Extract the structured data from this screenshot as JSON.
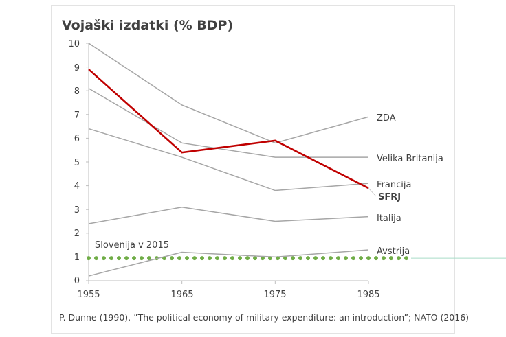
{
  "chart_data": {
    "type": "line",
    "title": "Vojaški izdatki (% BDP)",
    "xlabel": "",
    "ylabel": "",
    "x": [
      1955,
      1965,
      1975,
      1985
    ],
    "x_tick_labels": [
      "1955",
      "1965",
      "1975",
      "1985"
    ],
    "y_tick_labels": [
      "0",
      "1",
      "2",
      "3",
      "4",
      "5",
      "6",
      "7",
      "8",
      "9",
      "10"
    ],
    "ylim": [
      0,
      10
    ],
    "grid": false,
    "series": [
      {
        "name": "ZDA",
        "values": [
          10.0,
          7.4,
          5.8,
          6.9
        ],
        "color": "#a6a6a6",
        "highlight": false
      },
      {
        "name": "Velika Britanija",
        "values": [
          8.1,
          5.8,
          5.2,
          5.2
        ],
        "color": "#a6a6a6",
        "highlight": false
      },
      {
        "name": "Francija",
        "values": [
          6.4,
          5.2,
          3.8,
          4.1
        ],
        "color": "#a6a6a6",
        "highlight": false
      },
      {
        "name": "Italija",
        "values": [
          2.4,
          3.1,
          2.5,
          2.7
        ],
        "color": "#a6a6a6",
        "highlight": false
      },
      {
        "name": "Avstrija",
        "values": [
          0.2,
          1.2,
          1.0,
          1.3
        ],
        "color": "#a6a6a6",
        "highlight": false
      },
      {
        "name": "SFRJ",
        "values": [
          8.9,
          5.4,
          5.9,
          3.9
        ],
        "color": "#c00000",
        "highlight": true
      }
    ],
    "reference_line": {
      "label": "Slovenija v 2015",
      "value": 0.95,
      "color": "#70ad47",
      "style": "dotted"
    },
    "source": "P. Dunne (1990), ”The political economy of military expenditure: an introduction”; NATO (2016)"
  }
}
